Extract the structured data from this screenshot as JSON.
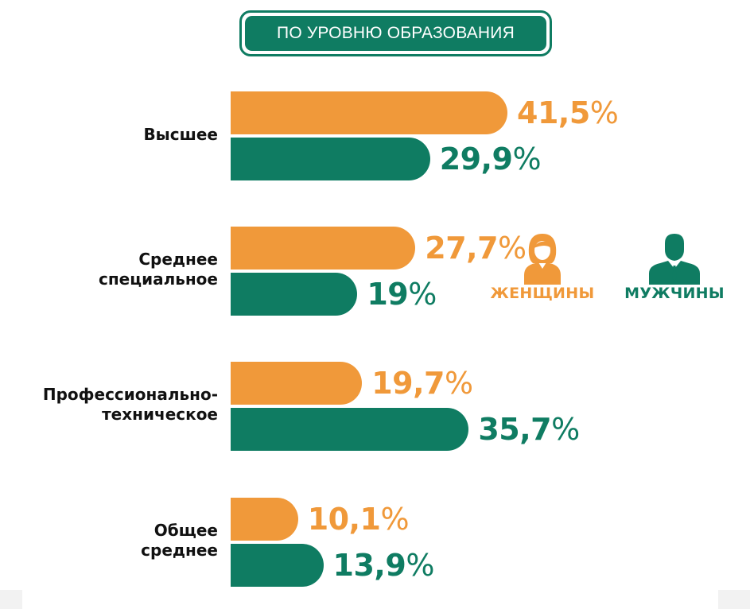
{
  "title": "ПО УРОВНЮ ОБРАЗОВАНИЯ",
  "legend": {
    "women": "ЖЕНЩИНЫ",
    "men": "МУЖЧИНЫ",
    "women_icon": "woman-icon",
    "men_icon": "man-in-suit-icon"
  },
  "colors": {
    "women": "#f0993a",
    "men": "#0f7c62"
  },
  "chart_data": {
    "type": "bar",
    "orientation": "horizontal",
    "title": "ПО УРОВНЮ ОБРАЗОВАНИЯ",
    "categories": [
      [
        "Высшее"
      ],
      [
        "Среднее",
        "специальное"
      ],
      [
        "Профессионально-",
        "техническое"
      ],
      [
        "Общее",
        "среднее"
      ]
    ],
    "series": [
      {
        "name": "ЖЕНЩИНЫ",
        "values": [
          41.5,
          27.7,
          19.7,
          10.1
        ]
      },
      {
        "name": "МУЖЧИНЫ",
        "values": [
          29.9,
          19,
          35.7,
          13.9
        ]
      }
    ],
    "labels": {
      "women": [
        "41,5",
        "27,7",
        "19,7",
        "10,1"
      ],
      "men": [
        "29,9",
        "19",
        "35,7",
        "13,9"
      ]
    },
    "unit": "%",
    "xlim": [
      0,
      41.5
    ],
    "grid": false,
    "legend_position": "right"
  }
}
